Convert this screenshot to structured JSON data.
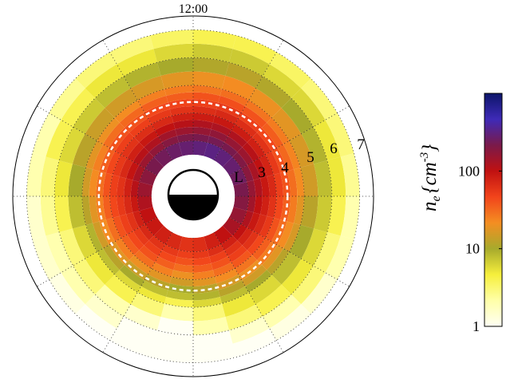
{
  "chart_data": {
    "type": "heatmap",
    "projection": "polar (L-shell vs magnetic local time)",
    "time_label": "12:00",
    "l_axis_name": "L",
    "l_labels": [
      "3",
      "4",
      "5",
      "6",
      "7"
    ],
    "colorbar": {
      "scale": "log",
      "range": [
        1,
        1000
      ],
      "ticks": [
        "1",
        "10",
        "100"
      ],
      "label_symbol": "n",
      "label_subscript": "e",
      "label_units": "{cm",
      "label_exponent": "-3",
      "label_close": "}",
      "colormap": [
        "#fffff4",
        "#ffffa8",
        "#f6ef3c",
        "#a7aa2c",
        "#f48e22",
        "#f2441b",
        "#c01111",
        "#7a1a4a",
        "#3e2ab7",
        "#0c1569"
      ]
    },
    "sectors_mlt": 24,
    "radial_bins_L": [
      2.5,
      3.0,
      3.25,
      3.5,
      3.75,
      4.0,
      4.25,
      4.5,
      4.75,
      5.0,
      5.5,
      6.0,
      6.5,
      7.0
    ],
    "plasmapause_L": 4.4,
    "density_cm3": [
      [
        60,
        50,
        40,
        30,
        20,
        15,
        10,
        8,
        4,
        2,
        1,
        1,
        1
      ],
      [
        70,
        55,
        45,
        35,
        25,
        18,
        12,
        8,
        5,
        3,
        1.5,
        1,
        1
      ],
      [
        80,
        60,
        50,
        40,
        30,
        20,
        14,
        10,
        6,
        4,
        2,
        1.5,
        1
      ],
      [
        90,
        70,
        55,
        45,
        35,
        25,
        18,
        12,
        8,
        5,
        3,
        2,
        1.2
      ],
      [
        100,
        80,
        60,
        50,
        40,
        30,
        22,
        15,
        9,
        6,
        3,
        2,
        1.5
      ],
      [
        120,
        90,
        70,
        55,
        45,
        35,
        25,
        18,
        12,
        8,
        4,
        2.5,
        1.5
      ],
      [
        150,
        110,
        80,
        60,
        50,
        40,
        30,
        22,
        15,
        10,
        5,
        3,
        2
      ],
      [
        180,
        130,
        95,
        70,
        55,
        45,
        35,
        25,
        18,
        12,
        6,
        4,
        2
      ],
      [
        220,
        150,
        110,
        80,
        60,
        50,
        40,
        30,
        20,
        14,
        7,
        4,
        2.5
      ],
      [
        240,
        170,
        120,
        90,
        65,
        50,
        40,
        32,
        22,
        15,
        8,
        5,
        3
      ],
      [
        260,
        190,
        140,
        100,
        70,
        55,
        45,
        35,
        25,
        16,
        9,
        5,
        3
      ],
      [
        280,
        210,
        150,
        110,
        80,
        60,
        48,
        36,
        26,
        18,
        10,
        6,
        3.5
      ],
      [
        300,
        220,
        160,
        120,
        85,
        65,
        50,
        40,
        28,
        20,
        11,
        7,
        4
      ],
      [
        320,
        230,
        170,
        125,
        90,
        70,
        55,
        42,
        30,
        22,
        12,
        7,
        4
      ],
      [
        300,
        220,
        160,
        120,
        85,
        65,
        50,
        40,
        28,
        20,
        11,
        6,
        3.5
      ],
      [
        280,
        200,
        150,
        110,
        80,
        60,
        46,
        36,
        26,
        18,
        10,
        6,
        3
      ],
      [
        250,
        180,
        130,
        100,
        75,
        55,
        42,
        32,
        24,
        16,
        9,
        5,
        3
      ],
      [
        220,
        160,
        120,
        90,
        70,
        50,
        40,
        30,
        22,
        15,
        8,
        5,
        2.5
      ],
      [
        190,
        140,
        100,
        80,
        60,
        45,
        35,
        26,
        18,
        12,
        7,
        4,
        2
      ],
      [
        160,
        120,
        90,
        70,
        55,
        40,
        30,
        22,
        16,
        10,
        6,
        3,
        2
      ],
      [
        130,
        100,
        75,
        60,
        45,
        35,
        26,
        18,
        12,
        8,
        5,
        3,
        1.5
      ],
      [
        100,
        80,
        60,
        50,
        38,
        28,
        20,
        15,
        10,
        6,
        4,
        2,
        1.2
      ],
      [
        80,
        65,
        50,
        40,
        30,
        22,
        16,
        12,
        8,
        5,
        3,
        1.5,
        1
      ],
      [
        65,
        55,
        45,
        35,
        25,
        18,
        12,
        9,
        6,
        3,
        2,
        1,
        1
      ]
    ]
  }
}
